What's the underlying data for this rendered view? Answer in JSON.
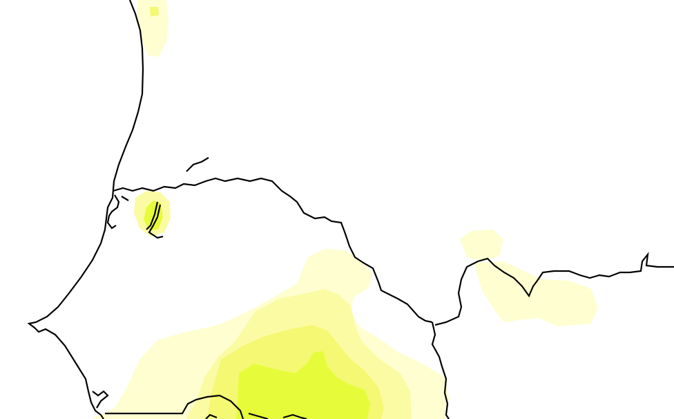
{
  "map": {
    "type": "precipitation-anomaly-map",
    "background_color": "#ffffff",
    "boundary_color": "#000000",
    "shading_levels": [
      {
        "level": 1,
        "color": "#fefed0"
      },
      {
        "level": 2,
        "color": "#fbfba4"
      },
      {
        "level": 3,
        "color": "#f4f872"
      },
      {
        "level": 4,
        "color": "#e6fc3a"
      }
    ]
  }
}
